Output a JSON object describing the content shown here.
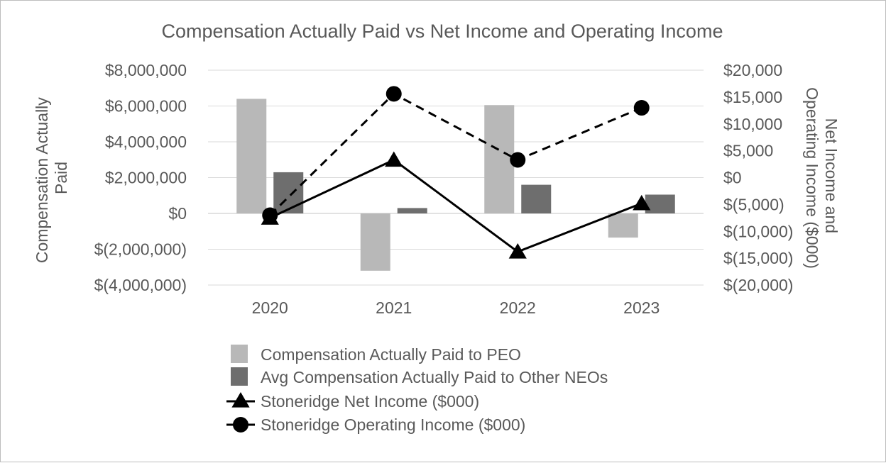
{
  "chart_data": {
    "type": "bar",
    "title": "Compensation Actually Paid vs Net Income and Operating Income",
    "ylabel": "Compensation Actually Paid",
    "y2label": "Net Income and Operating Income ($000)",
    "categories": [
      "2020",
      "2021",
      "2022",
      "2023"
    ],
    "ylim": [
      -4000000,
      8000000
    ],
    "yticks": [
      8000000,
      6000000,
      4000000,
      2000000,
      0,
      -2000000,
      -4000000
    ],
    "ytick_labels": [
      "$8,000,000",
      "$6,000,000",
      "$4,000,000",
      "$2,000,000",
      "$0",
      "$(2,000,000)",
      "$(4,000,000)"
    ],
    "y2lim": [
      -20000,
      20000
    ],
    "y2ticks": [
      20000,
      15000,
      10000,
      5000,
      0,
      -5000,
      -10000,
      -15000,
      -20000
    ],
    "y2tick_labels": [
      "$20,000",
      "$15,000",
      "$10,000",
      "$5,000",
      "$0",
      "$(5,000)",
      "$(10,000)",
      "$(15,000)",
      "$(20,000)"
    ],
    "bar_series": [
      {
        "name": "Compensation Actually Paid to PEO",
        "color": "#b8b8b8",
        "values": [
          6400000,
          -3200000,
          6050000,
          -1350000
        ]
      },
      {
        "name": "Avg Compensation Actually Paid to Other NEOs",
        "color": "#6e6e6e",
        "values": [
          2300000,
          300000,
          1600000,
          1050000
        ]
      }
    ],
    "line_series": [
      {
        "name": "Stoneridge Net Income ($000)",
        "axis": "right",
        "marker": "triangle",
        "dash": "solid",
        "color": "#000000",
        "values": [
          -7500,
          3300,
          -13800,
          -4800
        ]
      },
      {
        "name": "Stoneridge Operating Income ($000)",
        "axis": "right",
        "marker": "circle",
        "dash": "dashed",
        "color": "#000000",
        "values": [
          -7000,
          15600,
          3300,
          13000
        ]
      }
    ],
    "grid": true,
    "legend_position": "bottom"
  }
}
